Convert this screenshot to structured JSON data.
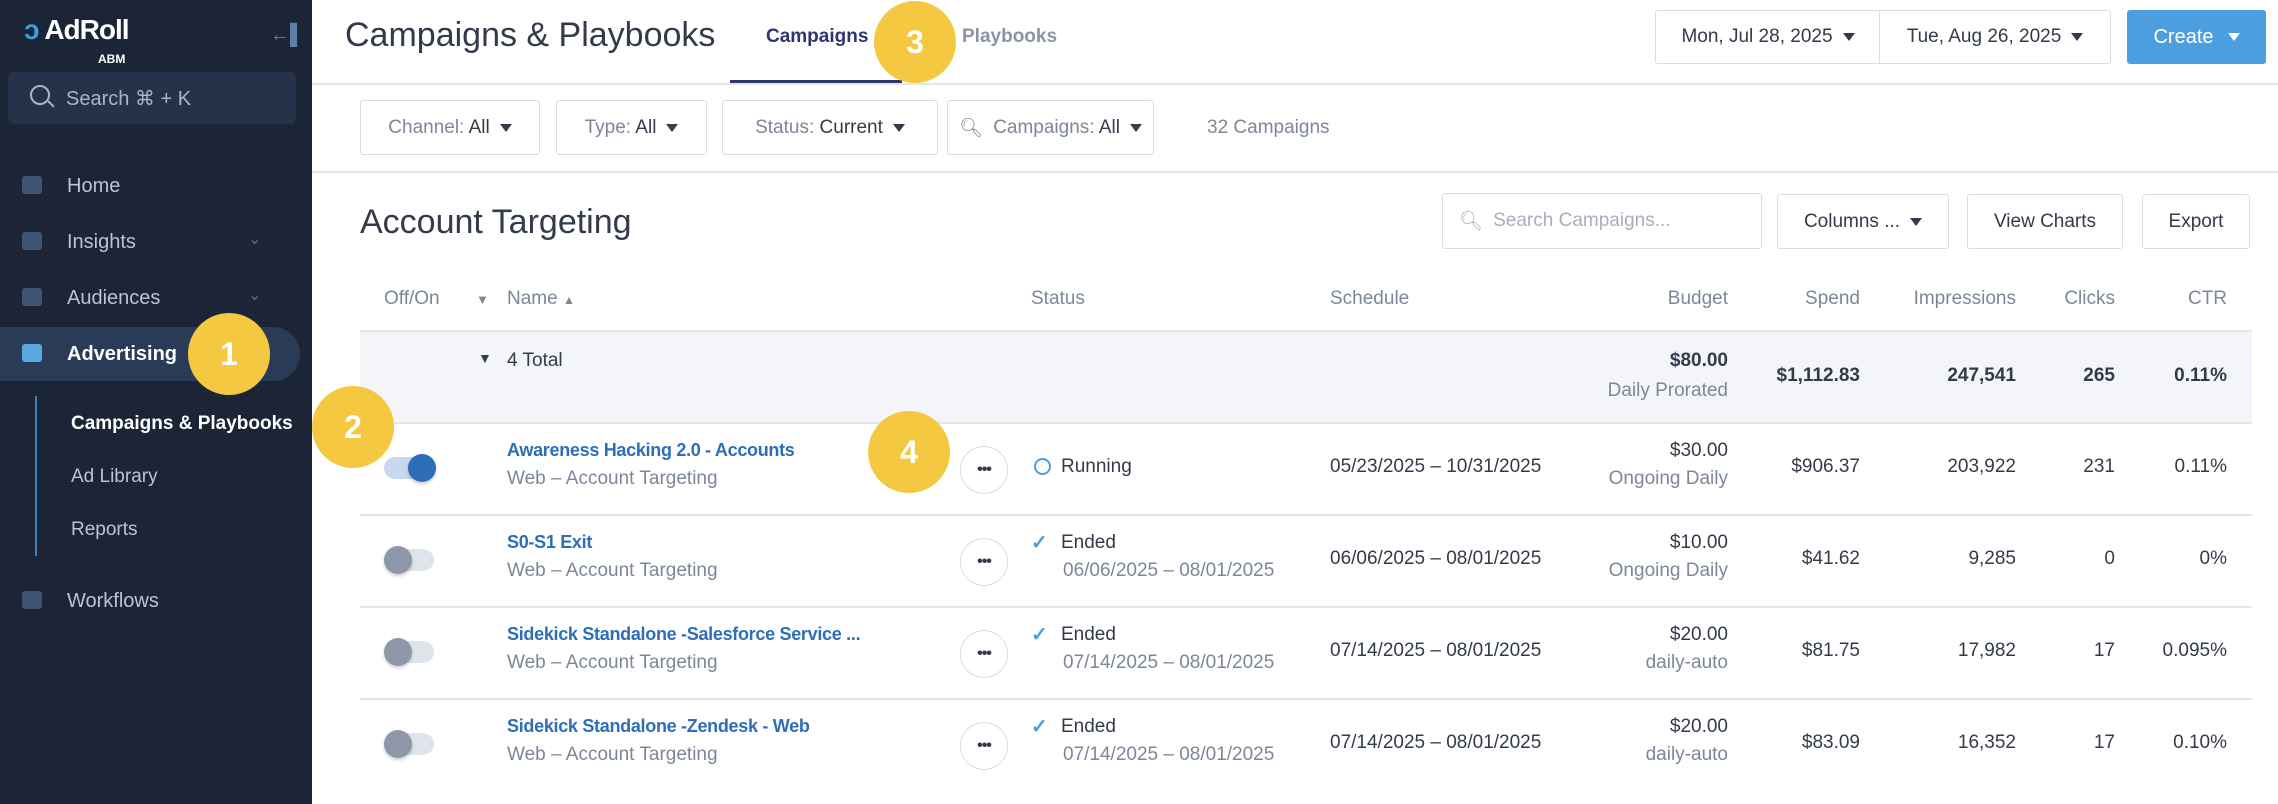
{
  "sidebar": {
    "logo": "AdRoll",
    "logo_sub": "ABM",
    "search_placeholder": "Search ⌘ + K",
    "items": [
      {
        "label": "Home",
        "icon": "home-icon"
      },
      {
        "label": "Insights",
        "icon": "insights-icon"
      },
      {
        "label": "Audiences",
        "icon": "audiences-icon"
      },
      {
        "label": "Advertising",
        "icon": "megaphone-icon"
      },
      {
        "label": "Workflows",
        "icon": "workflows-icon"
      }
    ],
    "subitems": [
      {
        "label": "Campaigns & Playbooks"
      },
      {
        "label": "Ad Library"
      },
      {
        "label": "Reports"
      }
    ]
  },
  "header": {
    "title": "Campaigns & Playbooks",
    "tabs": [
      {
        "label": "Campaigns"
      },
      {
        "label": "Playbooks"
      }
    ],
    "date_start": "Mon, Jul 28, 2025",
    "date_end": "Tue, Aug 26, 2025",
    "create": "Create"
  },
  "filters": {
    "channel_label": "Channel:",
    "channel": "All",
    "type_label": "Type:",
    "type": "All",
    "status_label": "Status:",
    "status": "Current",
    "campaigns_label": "Campaigns:",
    "campaigns": "All",
    "count": "32 Campaigns"
  },
  "section": {
    "title": "Account Targeting",
    "search_placeholder": "Search Campaigns...",
    "columns": "Columns ...",
    "view_charts": "View Charts",
    "export": "Export"
  },
  "table": {
    "headers": {
      "offon": "Off/On",
      "name": "Name",
      "status": "Status",
      "schedule": "Schedule",
      "budget": "Budget",
      "spend": "Spend",
      "impressions": "Impressions",
      "clicks": "Clicks",
      "ctr": "CTR"
    },
    "total": {
      "label": "4 Total",
      "budget": "$80.00",
      "budget_sub": "Daily Prorated",
      "spend": "$1,112.83",
      "impressions": "247,541",
      "clicks": "265",
      "ctr": "0.11%"
    },
    "rows": [
      {
        "on": true,
        "name": "Awareness Hacking 2.0 - Accounts",
        "type": "Web – Account Targeting",
        "status": "Running",
        "status_dates": "",
        "schedule": "05/23/2025 – 10/31/2025",
        "budget": "$30.00",
        "budget_sub": "Ongoing Daily",
        "spend": "$906.37",
        "impressions": "203,922",
        "clicks": "231",
        "ctr": "0.11%"
      },
      {
        "on": false,
        "name": "S0-S1 Exit",
        "type": "Web – Account Targeting",
        "status": "Ended",
        "status_dates": "06/06/2025 – 08/01/2025",
        "schedule": "06/06/2025 – 08/01/2025",
        "budget": "$10.00",
        "budget_sub": "Ongoing Daily",
        "spend": "$41.62",
        "impressions": "9,285",
        "clicks": "0",
        "ctr": "0%"
      },
      {
        "on": false,
        "name": "Sidekick Standalone -Salesforce Service ...",
        "type": "Web – Account Targeting",
        "status": "Ended",
        "status_dates": "07/14/2025 – 08/01/2025",
        "schedule": "07/14/2025 – 08/01/2025",
        "budget": "$20.00",
        "budget_sub": "daily-auto",
        "spend": "$81.75",
        "impressions": "17,982",
        "clicks": "17",
        "ctr": "0.095%"
      },
      {
        "on": false,
        "name": "Sidekick Standalone -Zendesk - Web",
        "type": "Web – Account Targeting",
        "status": "Ended",
        "status_dates": "07/14/2025 – 08/01/2025",
        "schedule": "07/14/2025 – 08/01/2025",
        "budget": "$20.00",
        "budget_sub": "daily-auto",
        "spend": "$83.09",
        "impressions": "16,352",
        "clicks": "17",
        "ctr": "0.10%"
      }
    ]
  },
  "annotations": [
    "1",
    "2",
    "3",
    "4"
  ],
  "colors": {
    "sidebar": "#1b2536",
    "accent": "#4d9ede",
    "link": "#2e6db8",
    "badge": "#f5c842"
  }
}
